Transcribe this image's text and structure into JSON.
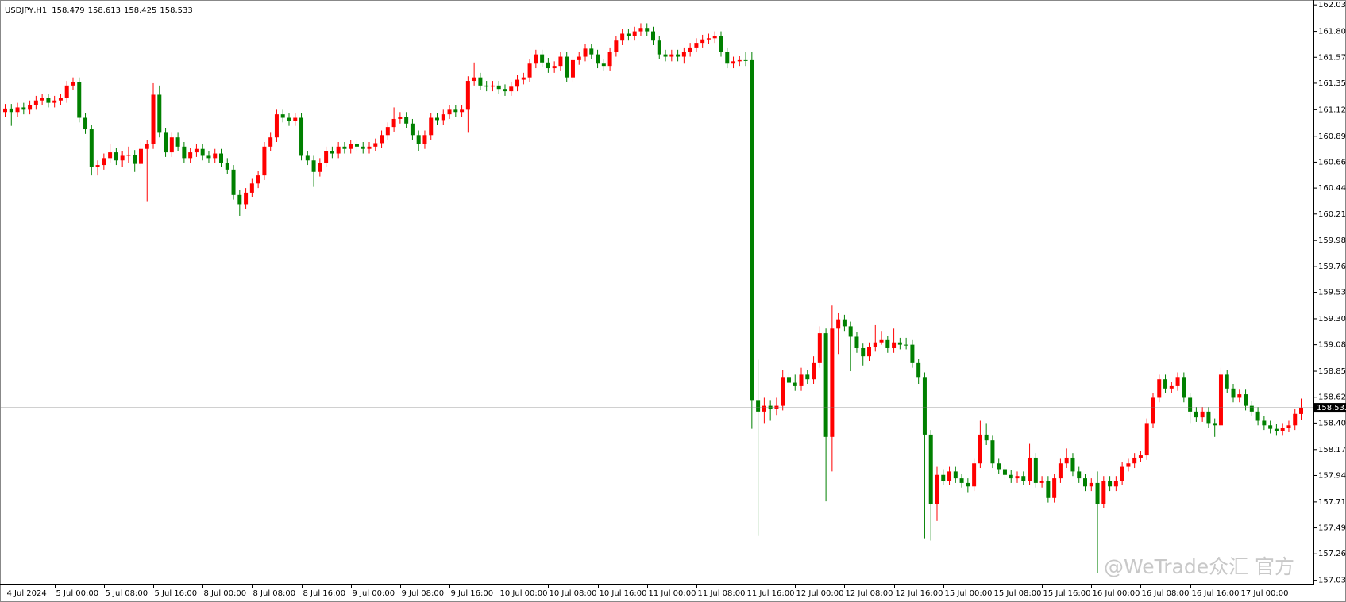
{
  "chart_data": {
    "type": "candlestick",
    "title": "USDJPY,H1",
    "watermark": "@WeTrade众汇 官方",
    "up_color": "#ff0000",
    "down_color": "#008000",
    "ylim": [
      157.005,
      162.045
    ],
    "yticks": [
      {
        "value": 162.03,
        "label": "162.030"
      },
      {
        "value": 161.8,
        "label": "161.800"
      },
      161.575,
      161.35,
      {
        "value": 161.12,
        "label": "161.120"
      },
      {
        "value": 160.89,
        "label": "160.890"
      },
      160.665,
      {
        "value": 160.44,
        "label": "160.440"
      },
      160.215,
      159.985,
      {
        "value": 159.76,
        "label": "159.760"
      },
      159.535,
      159.305,
      {
        "value": 159.08,
        "label": "159.080"
      },
      {
        "value": 158.85,
        "label": "158.850"
      },
      158.625,
      {
        "value": 158.4,
        "label": "158.400"
      },
      {
        "value": 158.17,
        "label": "158.170"
      },
      157.945,
      157.715,
      {
        "value": 157.49,
        "label": "157.490"
      },
      157.265,
      157.035
    ],
    "x": [
      "4 Jul 2024",
      null,
      null,
      null,
      null,
      null,
      null,
      null,
      "5 Jul 00:00",
      null,
      null,
      null,
      null,
      null,
      null,
      null,
      "5 Jul 08:00",
      null,
      null,
      null,
      null,
      null,
      null,
      null,
      "5 Jul 16:00",
      null,
      null,
      null,
      null,
      null,
      null,
      null,
      "8 Jul 00:00",
      null,
      null,
      null,
      null,
      null,
      null,
      null,
      "8 Jul 08:00",
      null,
      null,
      null,
      null,
      null,
      null,
      null,
      "8 Jul 16:00",
      null,
      null,
      null,
      null,
      null,
      null,
      null,
      "9 Jul 00:00",
      null,
      null,
      null,
      null,
      null,
      null,
      null,
      "9 Jul 08:00",
      null,
      null,
      null,
      null,
      null,
      null,
      null,
      "9 Jul 16:00",
      null,
      null,
      null,
      null,
      null,
      null,
      null,
      "10 Jul 00:00",
      null,
      null,
      null,
      null,
      null,
      null,
      null,
      "10 Jul 08:00",
      null,
      null,
      null,
      null,
      null,
      null,
      null,
      "10 Jul 16:00",
      null,
      null,
      null,
      null,
      null,
      null,
      null,
      "11 Jul 00:00",
      null,
      null,
      null,
      null,
      null,
      null,
      null,
      "11 Jul 08:00",
      null,
      null,
      null,
      null,
      null,
      null,
      null,
      "11 Jul 16:00",
      null,
      null,
      null,
      null,
      null,
      null,
      null,
      "12 Jul 00:00",
      null,
      null,
      null,
      null,
      null,
      null,
      null,
      "12 Jul 08:00",
      null,
      null,
      null,
      null,
      null,
      null,
      null,
      "12 Jul 16:00",
      null,
      null,
      null,
      null,
      null,
      null,
      null,
      "15 Jul 00:00",
      null,
      null,
      null,
      null,
      null,
      null,
      null,
      "15 Jul 08:00",
      null,
      null,
      null,
      null,
      null,
      null,
      null,
      "15 Jul 16:00",
      null,
      null,
      null,
      null,
      null,
      null,
      null,
      "16 Jul 00:00",
      null,
      null,
      null,
      null,
      null,
      null,
      null,
      "16 Jul 08:00",
      null,
      null,
      null,
      null,
      null,
      null,
      null,
      "16 Jul 16:00",
      null,
      null,
      null,
      null,
      null,
      null,
      null,
      "17 Jul 00:00",
      null,
      null,
      null,
      null,
      null,
      null,
      null,
      null,
      null,
      null
    ],
    "open": [
      161.1,
      161.13,
      161.1,
      161.14,
      161.12,
      161.16,
      161.2,
      161.22,
      161.18,
      161.2,
      161.22,
      161.33,
      161.36,
      161.05,
      160.95,
      160.62,
      160.64,
      160.7,
      160.75,
      160.68,
      160.72,
      160.73,
      160.65,
      160.78,
      160.82,
      161.25,
      160.92,
      160.75,
      160.88,
      160.8,
      160.7,
      160.75,
      160.78,
      160.72,
      160.7,
      160.74,
      160.66,
      160.6,
      160.38,
      160.3,
      160.4,
      160.48,
      160.55,
      160.8,
      160.88,
      161.08,
      161.05,
      161.02,
      161.05,
      160.72,
      160.68,
      160.58,
      160.66,
      160.76,
      160.74,
      160.8,
      160.78,
      160.82,
      160.8,
      160.78,
      160.8,
      160.83,
      160.9,
      160.97,
      161.04,
      161.06,
      161.0,
      160.9,
      160.82,
      160.9,
      161.05,
      161.03,
      161.08,
      161.12,
      161.1,
      161.12,
      161.37,
      161.4,
      161.33,
      161.32,
      161.33,
      161.3,
      161.28,
      161.32,
      161.38,
      161.4,
      161.52,
      161.6,
      161.53,
      161.48,
      161.5,
      161.58,
      161.4,
      161.55,
      161.58,
      161.65,
      161.6,
      161.52,
      161.5,
      161.62,
      161.72,
      161.78,
      161.76,
      161.8,
      161.83,
      161.8,
      161.72,
      161.6,
      161.58,
      161.6,
      161.58,
      161.62,
      161.66,
      161.7,
      161.73,
      161.74,
      161.76,
      161.62,
      161.52,
      161.54,
      161.55,
      161.55,
      158.6,
      158.5,
      158.55,
      158.52,
      158.55,
      158.8,
      158.75,
      158.72,
      158.82,
      158.78,
      158.92,
      159.18,
      158.28,
      159.22,
      159.3,
      159.24,
      159.15,
      159.05,
      158.98,
      159.06,
      159.1,
      159.12,
      159.05,
      159.1,
      159.08,
      159.08,
      158.92,
      158.8,
      158.3,
      157.7,
      157.95,
      157.9,
      157.98,
      157.92,
      157.88,
      157.85,
      158.05,
      158.3,
      158.25,
      158.05,
      158.0,
      157.95,
      157.92,
      157.94,
      157.9,
      158.1,
      157.88,
      157.9,
      157.75,
      157.92,
      158.05,
      158.1,
      157.98,
      157.92,
      157.85,
      157.88,
      157.7,
      157.9,
      157.85,
      157.9,
      158.02,
      158.05,
      158.1,
      158.12,
      158.4,
      158.62,
      158.78,
      158.7,
      158.72,
      158.8,
      158.62,
      158.5,
      158.45,
      158.5,
      158.4,
      158.38,
      158.82,
      158.7,
      158.62,
      158.65,
      158.55,
      158.5,
      158.42,
      158.38,
      158.35,
      158.33,
      158.36,
      158.38,
      158.479
    ],
    "high": [
      161.17,
      161.17,
      161.18,
      161.18,
      161.2,
      161.24,
      161.26,
      161.26,
      161.24,
      161.26,
      161.37,
      161.4,
      161.4,
      161.09,
      160.99,
      160.68,
      160.74,
      160.82,
      160.79,
      160.76,
      160.8,
      160.77,
      160.84,
      160.86,
      161.35,
      161.33,
      160.96,
      160.92,
      160.92,
      160.84,
      160.79,
      160.82,
      160.82,
      160.76,
      160.78,
      160.78,
      160.7,
      160.64,
      160.42,
      160.44,
      160.52,
      160.59,
      160.84,
      160.92,
      161.12,
      161.12,
      161.09,
      161.09,
      161.09,
      160.76,
      160.72,
      160.7,
      160.8,
      160.8,
      160.84,
      160.84,
      160.86,
      160.86,
      160.84,
      160.84,
      160.87,
      160.94,
      161.01,
      161.14,
      161.1,
      161.1,
      161.04,
      160.94,
      160.94,
      161.09,
      161.09,
      161.12,
      161.16,
      161.16,
      161.16,
      161.41,
      161.53,
      161.44,
      161.37,
      161.37,
      161.37,
      161.34,
      161.36,
      161.42,
      161.44,
      161.56,
      161.64,
      161.64,
      161.57,
      161.54,
      161.62,
      161.62,
      161.59,
      161.62,
      161.69,
      161.69,
      161.64,
      161.56,
      161.66,
      161.76,
      161.82,
      161.82,
      161.84,
      161.87,
      161.87,
      161.84,
      161.76,
      161.64,
      161.64,
      161.64,
      161.66,
      161.7,
      161.74,
      161.77,
      161.78,
      161.8,
      161.8,
      161.66,
      161.58,
      161.59,
      161.62,
      161.62,
      158.95,
      158.62,
      158.6,
      158.62,
      158.86,
      158.84,
      158.82,
      158.88,
      158.86,
      158.98,
      159.24,
      159.22,
      159.42,
      159.36,
      159.34,
      159.28,
      159.19,
      159.09,
      159.1,
      159.25,
      159.2,
      159.16,
      159.22,
      159.14,
      159.14,
      159.12,
      158.96,
      158.84,
      158.34,
      158.02,
      158.0,
      158.02,
      158.02,
      157.96,
      157.92,
      158.09,
      158.42,
      158.4,
      158.29,
      158.09,
      158.04,
      157.99,
      157.98,
      157.98,
      158.22,
      158.14,
      157.94,
      157.94,
      157.96,
      158.09,
      158.18,
      158.14,
      158.02,
      157.96,
      157.92,
      157.98,
      157.94,
      157.94,
      157.94,
      158.06,
      158.09,
      158.14,
      158.16,
      158.44,
      158.66,
      158.82,
      158.82,
      158.76,
      158.84,
      158.84,
      158.66,
      158.54,
      158.54,
      158.54,
      158.44,
      158.88,
      158.86,
      158.74,
      158.69,
      158.69,
      158.59,
      158.54,
      158.46,
      158.42,
      158.39,
      158.4,
      158.42,
      158.52,
      158.613
    ],
    "low": [
      161.06,
      160.98,
      161.06,
      161.08,
      161.08,
      161.12,
      161.16,
      161.14,
      161.14,
      161.16,
      161.18,
      161.29,
      161.01,
      160.91,
      160.55,
      160.55,
      160.6,
      160.66,
      160.64,
      160.62,
      160.66,
      160.58,
      160.61,
      160.32,
      160.78,
      160.88,
      160.71,
      160.71,
      160.76,
      160.66,
      160.66,
      160.71,
      160.68,
      160.66,
      160.66,
      160.62,
      160.56,
      160.34,
      160.2,
      160.26,
      160.36,
      160.44,
      160.51,
      160.76,
      160.84,
      161.01,
      160.98,
      160.98,
      160.68,
      160.64,
      160.45,
      160.54,
      160.62,
      160.7,
      160.7,
      160.74,
      160.74,
      160.76,
      160.74,
      160.74,
      160.76,
      160.79,
      160.86,
      160.93,
      161.0,
      160.96,
      160.86,
      160.76,
      160.78,
      160.86,
      160.99,
      160.99,
      161.04,
      161.06,
      161.06,
      160.92,
      161.33,
      161.29,
      161.28,
      161.28,
      161.26,
      161.24,
      161.24,
      161.28,
      161.34,
      161.36,
      161.48,
      161.49,
      161.44,
      161.44,
      161.46,
      161.36,
      161.36,
      161.51,
      161.54,
      161.56,
      161.48,
      161.46,
      161.46,
      161.58,
      161.68,
      161.72,
      161.72,
      161.76,
      161.76,
      161.68,
      161.56,
      161.54,
      161.54,
      161.54,
      161.52,
      161.58,
      161.62,
      161.66,
      161.69,
      161.7,
      161.58,
      161.48,
      161.48,
      161.5,
      161.5,
      158.35,
      157.42,
      158.4,
      158.42,
      158.47,
      158.51,
      158.71,
      158.68,
      158.68,
      158.74,
      158.74,
      158.88,
      157.72,
      157.98,
      159.0,
      159.2,
      158.85,
      159.01,
      158.9,
      158.94,
      159.02,
      159.08,
      159.01,
      159.01,
      159.04,
      159.04,
      158.88,
      158.74,
      157.4,
      157.38,
      157.55,
      157.86,
      157.86,
      157.88,
      157.84,
      157.8,
      157.81,
      158.01,
      158.21,
      158.01,
      157.96,
      157.91,
      157.88,
      157.88,
      157.86,
      157.86,
      157.84,
      157.84,
      157.71,
      157.71,
      157.88,
      158.01,
      157.94,
      157.88,
      157.81,
      157.81,
      157.1,
      157.66,
      157.81,
      157.81,
      157.86,
      157.98,
      158.01,
      158.06,
      158.08,
      158.36,
      158.58,
      158.66,
      158.66,
      158.68,
      158.58,
      158.4,
      158.41,
      158.41,
      158.36,
      158.28,
      158.34,
      158.66,
      158.58,
      158.58,
      158.51,
      158.46,
      158.38,
      158.34,
      158.31,
      158.29,
      158.29,
      158.32,
      158.34,
      158.425
    ],
    "close": [
      161.13,
      161.1,
      161.14,
      161.12,
      161.16,
      161.2,
      161.22,
      161.18,
      161.2,
      161.22,
      161.33,
      161.36,
      161.05,
      160.95,
      160.62,
      160.64,
      160.7,
      160.75,
      160.68,
      160.72,
      160.73,
      160.65,
      160.78,
      160.82,
      161.25,
      160.92,
      160.75,
      160.88,
      160.8,
      160.7,
      160.75,
      160.78,
      160.72,
      160.7,
      160.74,
      160.66,
      160.6,
      160.38,
      160.3,
      160.4,
      160.48,
      160.55,
      160.8,
      160.88,
      161.08,
      161.05,
      161.02,
      161.05,
      160.72,
      160.68,
      160.58,
      160.66,
      160.76,
      160.74,
      160.8,
      160.78,
      160.82,
      160.8,
      160.78,
      160.8,
      160.83,
      160.9,
      160.97,
      161.04,
      161.06,
      161.0,
      160.9,
      160.82,
      160.9,
      161.05,
      161.03,
      161.08,
      161.12,
      161.1,
      161.12,
      161.37,
      161.4,
      161.33,
      161.32,
      161.33,
      161.3,
      161.28,
      161.32,
      161.38,
      161.4,
      161.52,
      161.6,
      161.53,
      161.48,
      161.5,
      161.58,
      161.4,
      161.55,
      161.58,
      161.65,
      161.6,
      161.52,
      161.5,
      161.62,
      161.72,
      161.78,
      161.76,
      161.8,
      161.83,
      161.8,
      161.72,
      161.6,
      161.58,
      161.6,
      161.58,
      161.62,
      161.66,
      161.7,
      161.73,
      161.74,
      161.76,
      161.62,
      161.52,
      161.54,
      161.55,
      161.55,
      158.6,
      158.5,
      158.55,
      158.52,
      158.55,
      158.8,
      158.75,
      158.72,
      158.82,
      158.78,
      158.92,
      159.18,
      158.28,
      159.22,
      159.3,
      159.24,
      159.15,
      159.05,
      158.98,
      159.06,
      159.1,
      159.12,
      159.05,
      159.1,
      159.08,
      159.08,
      158.92,
      158.8,
      158.3,
      157.7,
      157.95,
      157.9,
      157.98,
      157.92,
      157.88,
      157.85,
      158.05,
      158.3,
      158.25,
      158.05,
      158.0,
      157.95,
      157.92,
      157.94,
      157.9,
      158.1,
      157.88,
      157.9,
      157.75,
      157.92,
      158.05,
      158.1,
      157.98,
      157.92,
      157.85,
      157.88,
      157.7,
      157.9,
      157.85,
      157.9,
      158.02,
      158.05,
      158.1,
      158.12,
      158.4,
      158.62,
      158.78,
      158.7,
      158.72,
      158.8,
      158.62,
      158.5,
      158.45,
      158.5,
      158.4,
      158.38,
      158.82,
      158.7,
      158.62,
      158.65,
      158.55,
      158.5,
      158.42,
      158.38,
      158.35,
      158.33,
      158.36,
      158.38,
      158.48,
      158.533
    ]
  }
}
